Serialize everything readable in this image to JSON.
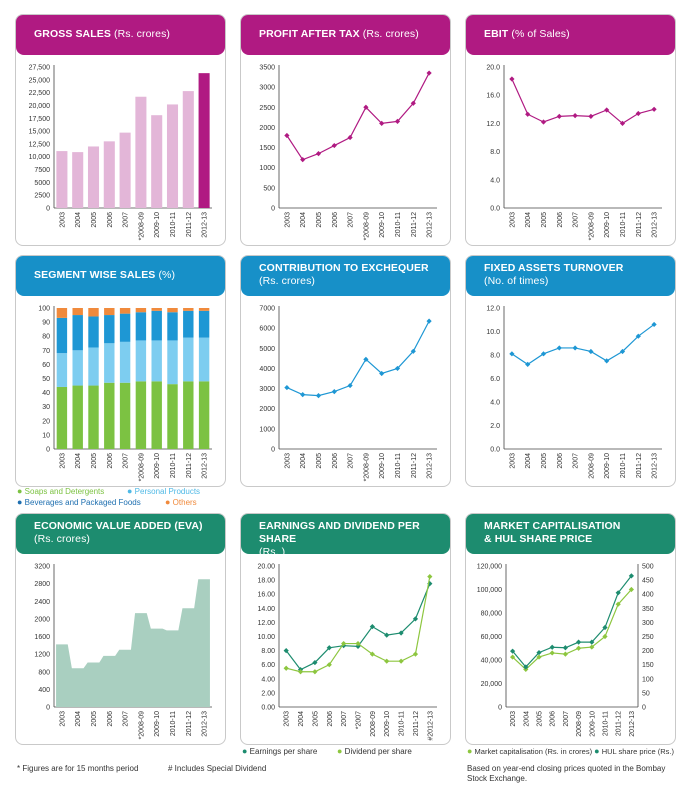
{
  "panels": {
    "p1": {
      "title": "GROSS SALES",
      "title_sub": "(Rs. crores)",
      "color": "#b01a82"
    },
    "p2": {
      "title": "PROFIT AFTER TAX",
      "title_sub": "(Rs. crores)",
      "color": "#b01a82"
    },
    "p3": {
      "title": "EBIT",
      "title_sub": "(% of Sales)",
      "color": "#b01a82"
    },
    "p4": {
      "title": "SEGMENT WISE SALES",
      "title_sub": "(%)",
      "color": "#1790c8"
    },
    "p5": {
      "title": "CONTRIBUTION TO EXCHEQUER",
      "title_sub": "(Rs. crores)",
      "color": "#1790c8"
    },
    "p6": {
      "title": "FIXED ASSETS TURNOVER",
      "title_sub": "(No. of times)",
      "color": "#1790c8"
    },
    "p7": {
      "title": "ECONOMIC VALUE ADDED (EVA)",
      "title_sub": "(Rs. crores)",
      "color": "#1d8c6f"
    },
    "p8": {
      "title": "EARNINGS AND DIVIDEND PER SHARE",
      "title_sub": "(Rs. )",
      "color": "#1d8c6f"
    },
    "p9": {
      "title": "MARKET CAPITALISATION",
      "title_line2": "& HUL SHARE PRICE",
      "color": "#1d8c6f"
    }
  },
  "legends": {
    "segment": [
      "Soaps and Detergents",
      "Personal Products",
      "Beverages and Packaged Foods",
      "Others"
    ],
    "eps": [
      "Earnings per share",
      "Dividend per share"
    ],
    "mcap": [
      "Market capitalisation (Rs. in crores)",
      "HUL share price (Rs.)"
    ]
  },
  "notes": {
    "months15": "* Figures are for 15 months period",
    "special": "# Includes Special Dividend",
    "bse": "Based on year-end closing prices quoted in the Bombay Stock Exchange."
  },
  "chart_data": [
    {
      "id": "gross_sales",
      "type": "bar",
      "categories": [
        "2003",
        "2004",
        "2005",
        "2006",
        "2007",
        "*2008-09",
        "2009-10",
        "2010-11",
        "2011-12",
        "2012-13"
      ],
      "values": [
        11100,
        10900,
        12000,
        13000,
        14700,
        21700,
        18100,
        20200,
        22800,
        26300
      ],
      "ylim": [
        0,
        27500
      ],
      "yticks": [
        0,
        2500,
        5000,
        7500,
        10000,
        12500,
        15000,
        17500,
        20000,
        22500,
        25000,
        27500
      ],
      "colors": [
        "#e3b6d8",
        "#b01a82"
      ],
      "highlight_last": true
    },
    {
      "id": "pat",
      "type": "line",
      "categories": [
        "2003",
        "2004",
        "2005",
        "2006",
        "2007",
        "*2008-09",
        "2009-10",
        "2010-11",
        "2011-12",
        "2012-13"
      ],
      "values": [
        1800,
        1200,
        1350,
        1550,
        1750,
        2500,
        2100,
        2150,
        2600,
        3350
      ],
      "ylim": [
        0,
        3500
      ],
      "yticks": [
        0,
        500,
        1000,
        1500,
        2000,
        2500,
        3000,
        3500
      ],
      "color": "#b01a82"
    },
    {
      "id": "ebit",
      "type": "line",
      "categories": [
        "2003",
        "2004",
        "2005",
        "2006",
        "2007",
        "*2008-09",
        "2009-10",
        "2010-11",
        "2011-12",
        "2012-13"
      ],
      "values": [
        18.3,
        13.3,
        12.2,
        13.0,
        13.1,
        13.0,
        13.9,
        12.0,
        13.4,
        14.0
      ],
      "ylim": [
        0,
        20
      ],
      "yticks": [
        0,
        4.0,
        8.0,
        12.0,
        16.0,
        20.0
      ],
      "ytick_decimals": 1,
      "color": "#b01a82"
    },
    {
      "id": "segment",
      "type": "bar",
      "stacked": true,
      "categories": [
        "2003",
        "2004",
        "2005",
        "2006",
        "2007",
        "*2008-09",
        "2009-10",
        "2010-11",
        "2011-12",
        "2012-13"
      ],
      "series": [
        {
          "name": "Soaps and Detergents",
          "values": [
            44,
            45,
            45,
            47,
            47,
            48,
            48,
            46,
            48,
            48
          ],
          "color": "#7cc242"
        },
        {
          "name": "Personal Products",
          "values": [
            24,
            25,
            27,
            28,
            29,
            29,
            29,
            31,
            31,
            31
          ],
          "color": "#7dcdf0"
        },
        {
          "name": "Beverages and Packaged Foods",
          "values": [
            25,
            25,
            22,
            20,
            20,
            20,
            21,
            20,
            19,
            19
          ],
          "color": "#1e97d4"
        },
        {
          "name": "Others",
          "values": [
            7,
            5,
            6,
            5,
            4,
            3,
            2,
            3,
            2,
            2
          ],
          "color": "#f08a3c"
        }
      ],
      "ylim": [
        0,
        100
      ],
      "yticks": [
        0,
        10,
        20,
        30,
        40,
        50,
        60,
        70,
        80,
        90,
        100
      ]
    },
    {
      "id": "exchequer",
      "type": "line",
      "categories": [
        "2003",
        "2004",
        "2005",
        "2006",
        "2007",
        "*2008-09",
        "2009-10",
        "2010-11",
        "2011-12",
        "2012-13"
      ],
      "values": [
        3050,
        2700,
        2650,
        2850,
        3150,
        4450,
        3750,
        4000,
        4850,
        6350
      ],
      "ylim": [
        0,
        7000
      ],
      "yticks": [
        0,
        1000,
        2000,
        3000,
        4000,
        5000,
        6000,
        7000
      ],
      "color": "#1e97d4"
    },
    {
      "id": "fat",
      "type": "line",
      "categories": [
        "2003",
        "2004",
        "2005",
        "2006",
        "2007",
        "2008-09",
        "2009-10",
        "2010-11",
        "2011-12",
        "2012-13"
      ],
      "values": [
        8.1,
        7.2,
        8.1,
        8.6,
        8.6,
        8.3,
        7.5,
        8.3,
        9.6,
        10.6
      ],
      "ylim": [
        0,
        12
      ],
      "yticks": [
        0,
        2.0,
        4.0,
        6.0,
        8.0,
        10.0,
        12.0
      ],
      "ytick_decimals": 1,
      "color": "#1e97d4"
    },
    {
      "id": "eva",
      "type": "area",
      "categories": [
        "2003",
        "2004",
        "2005",
        "2006",
        "2007",
        "*2008-09",
        "2009-10",
        "2010-11",
        "2011-12",
        "2012-13"
      ],
      "values": [
        1420,
        880,
        1010,
        1160,
        1300,
        2130,
        1780,
        1740,
        2240,
        2900
      ],
      "ylim": [
        0,
        3200
      ],
      "yticks": [
        0,
        400,
        800,
        1200,
        1600,
        2000,
        2400,
        2800,
        3200
      ],
      "color": "#a9cfc0"
    },
    {
      "id": "eps_dps",
      "type": "line",
      "categories": [
        "2003",
        "2004",
        "2005",
        "2006",
        "2007",
        "*2007",
        "2008-09",
        "2009-10",
        "2010-11",
        "2011-12",
        "#2012-13"
      ],
      "series": [
        {
          "name": "Earnings per share",
          "values": [
            8.0,
            5.3,
            6.3,
            8.4,
            8.7,
            8.6,
            11.4,
            10.2,
            10.5,
            12.5,
            17.5
          ],
          "color": "#1d8c6f"
        },
        {
          "name": "Dividend per share",
          "values": [
            5.5,
            5.0,
            5.0,
            6.0,
            9.0,
            9.0,
            7.5,
            6.5,
            6.5,
            7.5,
            18.5
          ],
          "color": "#8dc63f"
        }
      ],
      "ylim": [
        0,
        20
      ],
      "yticks": [
        0,
        2.0,
        4.0,
        6.0,
        8.0,
        10.0,
        12.0,
        14.0,
        16.0,
        18.0,
        20.0
      ],
      "ytick_decimals": 2
    },
    {
      "id": "mcap",
      "type": "line",
      "dual_axis": true,
      "categories": [
        "2003",
        "2004",
        "2005",
        "2006",
        "2007",
        "2008-09",
        "2009-10",
        "2010-11",
        "2011-12",
        "2012-13"
      ],
      "series": [
        {
          "name": "Market capitalisation (Rs. in crores)",
          "values": [
            42500,
            32000,
            42500,
            46000,
            45000,
            50000,
            51000,
            60000,
            87500,
            100000
          ],
          "color": "#8dc63f",
          "axis": "left"
        },
        {
          "name": "HUL share price (Rs.)",
          "values": [
            198,
            142,
            193,
            212,
            210,
            230,
            230,
            282,
            405,
            465
          ],
          "color": "#1d8c6f",
          "axis": "right"
        }
      ],
      "ylim": [
        0,
        120000
      ],
      "yticks": [
        0,
        20000,
        40000,
        60000,
        80000,
        100000,
        120000
      ],
      "y2lim": [
        0,
        500
      ],
      "y2ticks": [
        0,
        50,
        100,
        150,
        200,
        250,
        300,
        350,
        400,
        450,
        500
      ]
    }
  ]
}
